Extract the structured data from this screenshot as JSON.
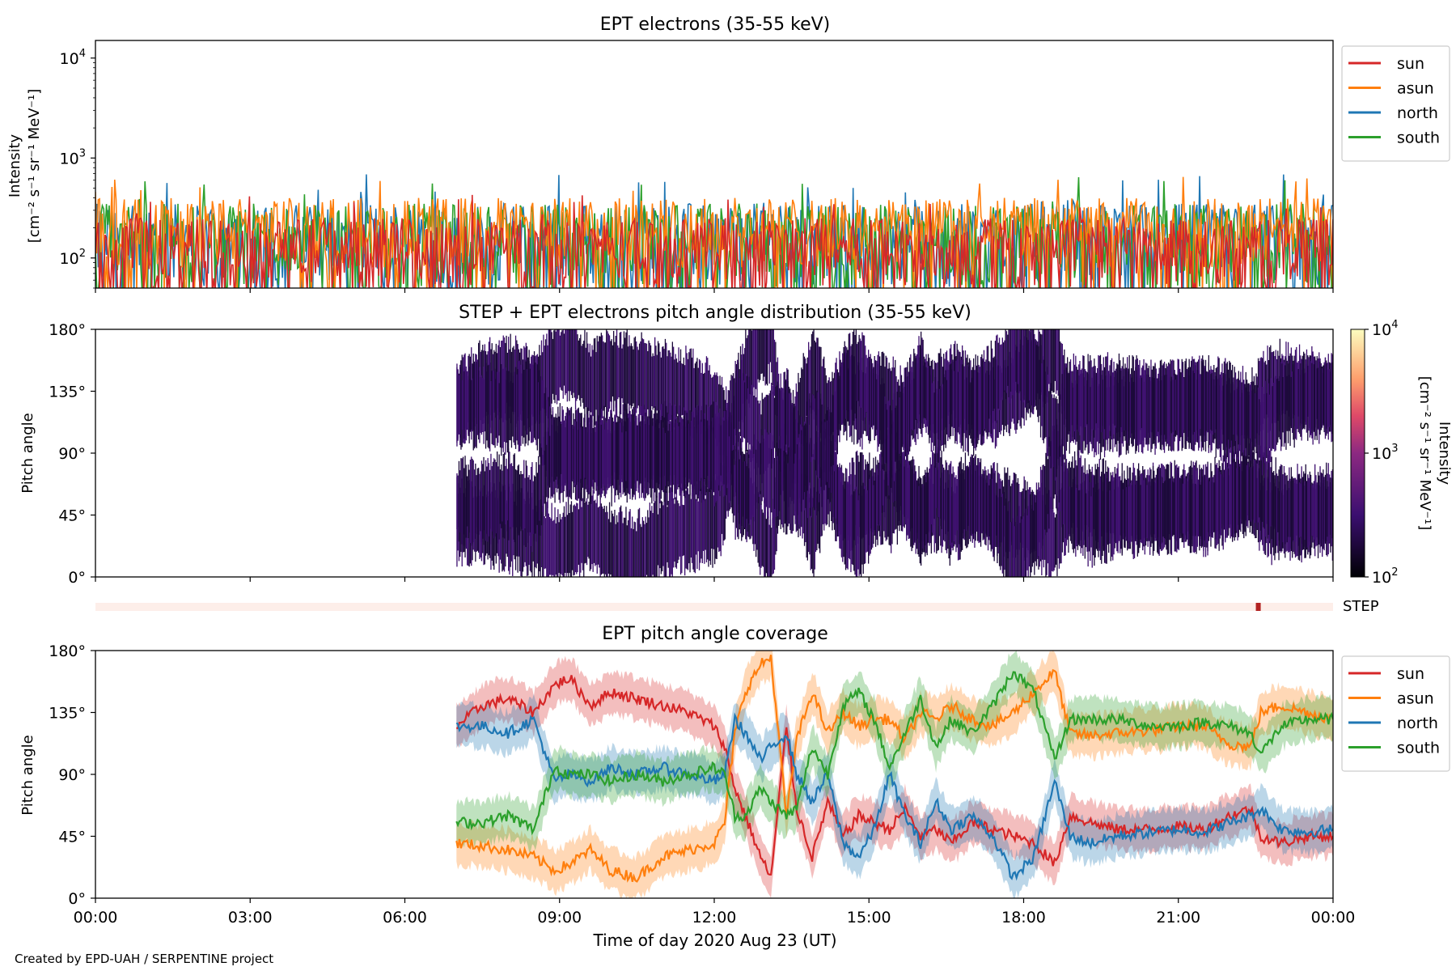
{
  "figure": {
    "credit": "Created by EPD-UAH / SERPENTINE project"
  },
  "colors": {
    "sun": "#d62728",
    "asun": "#ff7f0e",
    "north": "#1f77b4",
    "south": "#2ca02c",
    "pad_low": "#1a0838",
    "pad_mid": "#3d0f6e",
    "step_bar": "#fdeee9",
    "step_mark": "#b22222"
  },
  "x_axis": {
    "label": "Time of day 2020 Aug 23 (UT)",
    "ticks": [
      {
        "hour": 0,
        "label": "00:00"
      },
      {
        "hour": 3,
        "label": "03:00"
      },
      {
        "hour": 6,
        "label": "06:00"
      },
      {
        "hour": 9,
        "label": "09:00"
      },
      {
        "hour": 12,
        "label": "12:00"
      },
      {
        "hour": 15,
        "label": "15:00"
      },
      {
        "hour": 18,
        "label": "18:00"
      },
      {
        "hour": 21,
        "label": "21:00"
      },
      {
        "hour": 24,
        "label": "00:00"
      }
    ]
  },
  "chart_data": [
    {
      "type": "line",
      "title": "EPT electrons (35-55 keV)",
      "ylabel_line1": "Intensity",
      "ylabel_line2": "[cm⁻² s⁻¹ sr⁻¹ MeV⁻¹]",
      "yscale": "log",
      "ylim": [
        50,
        15000
      ],
      "xlim_hours": [
        0,
        24
      ],
      "y_ticks": [
        {
          "value": 100,
          "base": "10",
          "exp": "2"
        },
        {
          "value": 1000,
          "base": "10",
          "exp": "3"
        },
        {
          "value": 10000,
          "base": "10",
          "exp": "4"
        }
      ],
      "legend_position": "upper right outside",
      "series": [
        {
          "name": "sun",
          "color_key": "sun",
          "typical_range": [
            50,
            250
          ],
          "peak": 450
        },
        {
          "name": "asun",
          "color_key": "asun",
          "typical_range": [
            80,
            400
          ],
          "peak": 650
        },
        {
          "name": "north",
          "color_key": "north",
          "typical_range": [
            50,
            350
          ],
          "peak": 700
        },
        {
          "name": "south",
          "color_key": "south",
          "typical_range": [
            50,
            350
          ],
          "peak": 750
        }
      ]
    },
    {
      "type": "heatmap",
      "title": "STEP + EPT electrons pitch angle distribution (35-55 keV)",
      "ylabel": "Pitch angle",
      "ylim": [
        0,
        180
      ],
      "y_ticks": [
        {
          "value": 0,
          "label": "0°"
        },
        {
          "value": 45,
          "label": "45°"
        },
        {
          "value": 90,
          "label": "90°"
        },
        {
          "value": 135,
          "label": "135°"
        },
        {
          "value": 180,
          "label": "180°"
        }
      ],
      "data_start_hour": 7.0,
      "colorbar": {
        "label_line1": "Intensity",
        "label_line2": "[cm⁻² s⁻¹ sr⁻¹ MeV⁻¹]",
        "scale": "log",
        "range": [
          100,
          10000
        ],
        "ticks": [
          {
            "value": 100,
            "base": "10",
            "exp": "2"
          },
          {
            "value": 1000,
            "base": "10",
            "exp": "3"
          },
          {
            "value": 10000,
            "base": "10",
            "exp": "4"
          }
        ]
      }
    },
    {
      "type": "bar",
      "title": "",
      "label": "STEP",
      "mark_hour": 22.55
    },
    {
      "type": "area",
      "title": "EPT pitch angle coverage",
      "ylabel": "Pitch angle",
      "ylim": [
        0,
        180
      ],
      "y_ticks": [
        {
          "value": 0,
          "label": "0°"
        },
        {
          "value": 45,
          "label": "45°"
        },
        {
          "value": 90,
          "label": "90°"
        },
        {
          "value": 135,
          "label": "135°"
        },
        {
          "value": 180,
          "label": "180°"
        }
      ],
      "legend_position": "upper right outside",
      "series": [
        {
          "name": "sun",
          "color_key": "sun",
          "points": [
            [
              7.0,
              125
            ],
            [
              7.5,
              140
            ],
            [
              8.0,
              145
            ],
            [
              8.5,
              135
            ],
            [
              8.9,
              155
            ],
            [
              9.2,
              160
            ],
            [
              9.6,
              140
            ],
            [
              10.0,
              150
            ],
            [
              10.5,
              145
            ],
            [
              11.0,
              140
            ],
            [
              11.5,
              135
            ],
            [
              12.0,
              125
            ],
            [
              12.2,
              110
            ],
            [
              12.4,
              80
            ],
            [
              12.6,
              60
            ],
            [
              12.9,
              30
            ],
            [
              13.1,
              15
            ],
            [
              13.4,
              125
            ],
            [
              13.6,
              65
            ],
            [
              13.9,
              30
            ],
            [
              14.2,
              70
            ],
            [
              14.5,
              45
            ],
            [
              14.8,
              60
            ],
            [
              15.1,
              55
            ],
            [
              15.4,
              50
            ],
            [
              15.7,
              65
            ],
            [
              16.0,
              45
            ],
            [
              16.3,
              50
            ],
            [
              16.6,
              40
            ],
            [
              17.0,
              55
            ],
            [
              17.4,
              50
            ],
            [
              17.8,
              45
            ],
            [
              18.2,
              40
            ],
            [
              18.6,
              25
            ],
            [
              18.9,
              60
            ],
            [
              19.3,
              55
            ],
            [
              19.8,
              50
            ],
            [
              20.5,
              50
            ],
            [
              21.0,
              52
            ],
            [
              21.5,
              50
            ],
            [
              22.0,
              60
            ],
            [
              22.4,
              65
            ],
            [
              22.6,
              45
            ],
            [
              23.0,
              40
            ],
            [
              23.5,
              45
            ],
            [
              24.0,
              45
            ]
          ]
        },
        {
          "name": "asun",
          "color_key": "asun",
          "points": [
            [
              7.0,
              40
            ],
            [
              7.5,
              38
            ],
            [
              8.0,
              35
            ],
            [
              8.5,
              30
            ],
            [
              8.9,
              20
            ],
            [
              9.2,
              25
            ],
            [
              9.6,
              35
            ],
            [
              10.0,
              20
            ],
            [
              10.5,
              15
            ],
            [
              11.0,
              30
            ],
            [
              11.5,
              35
            ],
            [
              12.0,
              40
            ],
            [
              12.2,
              55
            ],
            [
              12.4,
              120
            ],
            [
              12.6,
              150
            ],
            [
              12.9,
              170
            ],
            [
              13.1,
              175
            ],
            [
              13.4,
              60
            ],
            [
              13.6,
              115
            ],
            [
              13.9,
              150
            ],
            [
              14.2,
              120
            ],
            [
              14.5,
              135
            ],
            [
              14.8,
              125
            ],
            [
              15.1,
              130
            ],
            [
              15.4,
              130
            ],
            [
              15.7,
              115
            ],
            [
              16.0,
              135
            ],
            [
              16.3,
              130
            ],
            [
              16.6,
              140
            ],
            [
              17.0,
              130
            ],
            [
              17.4,
              125
            ],
            [
              17.8,
              135
            ],
            [
              18.2,
              150
            ],
            [
              18.6,
              165
            ],
            [
              18.9,
              120
            ],
            [
              19.3,
              118
            ],
            [
              19.8,
              120
            ],
            [
              20.5,
              122
            ],
            [
              21.0,
              125
            ],
            [
              21.5,
              125
            ],
            [
              22.0,
              112
            ],
            [
              22.4,
              110
            ],
            [
              22.6,
              135
            ],
            [
              23.0,
              140
            ],
            [
              23.5,
              135
            ],
            [
              24.0,
              130
            ]
          ]
        },
        {
          "name": "north",
          "color_key": "north",
          "points": [
            [
              7.0,
              125
            ],
            [
              7.5,
              125
            ],
            [
              8.0,
              120
            ],
            [
              8.5,
              130
            ],
            [
              8.9,
              85
            ],
            [
              9.2,
              90
            ],
            [
              9.6,
              85
            ],
            [
              10.0,
              95
            ],
            [
              10.5,
              90
            ],
            [
              11.0,
              95
            ],
            [
              11.5,
              90
            ],
            [
              12.0,
              85
            ],
            [
              12.2,
              90
            ],
            [
              12.4,
              130
            ],
            [
              12.6,
              120
            ],
            [
              12.9,
              100
            ],
            [
              13.1,
              110
            ],
            [
              13.4,
              120
            ],
            [
              13.6,
              90
            ],
            [
              13.9,
              70
            ],
            [
              14.2,
              90
            ],
            [
              14.5,
              40
            ],
            [
              14.8,
              30
            ],
            [
              15.1,
              50
            ],
            [
              15.4,
              90
            ],
            [
              15.7,
              60
            ],
            [
              16.0,
              40
            ],
            [
              16.3,
              70
            ],
            [
              16.6,
              50
            ],
            [
              17.0,
              60
            ],
            [
              17.4,
              45
            ],
            [
              17.8,
              15
            ],
            [
              18.2,
              30
            ],
            [
              18.6,
              85
            ],
            [
              18.9,
              45
            ],
            [
              19.3,
              40
            ],
            [
              19.8,
              45
            ],
            [
              20.5,
              48
            ],
            [
              21.0,
              50
            ],
            [
              21.5,
              48
            ],
            [
              22.0,
              55
            ],
            [
              22.4,
              60
            ],
            [
              22.6,
              65
            ],
            [
              23.0,
              50
            ],
            [
              23.5,
              48
            ],
            [
              24.0,
              50
            ]
          ]
        },
        {
          "name": "south",
          "color_key": "south",
          "points": [
            [
              7.0,
              55
            ],
            [
              7.5,
              55
            ],
            [
              8.0,
              60
            ],
            [
              8.5,
              50
            ],
            [
              8.9,
              95
            ],
            [
              9.2,
              90
            ],
            [
              9.6,
              90
            ],
            [
              10.0,
              85
            ],
            [
              10.5,
              90
            ],
            [
              11.0,
              85
            ],
            [
              11.5,
              90
            ],
            [
              12.0,
              95
            ],
            [
              12.2,
              90
            ],
            [
              12.4,
              60
            ],
            [
              12.6,
              60
            ],
            [
              12.9,
              80
            ],
            [
              13.1,
              70
            ],
            [
              13.4,
              60
            ],
            [
              13.6,
              65
            ],
            [
              13.9,
              110
            ],
            [
              14.2,
              90
            ],
            [
              14.5,
              140
            ],
            [
              14.8,
              150
            ],
            [
              15.1,
              130
            ],
            [
              15.4,
              95
            ],
            [
              15.7,
              120
            ],
            [
              16.0,
              145
            ],
            [
              16.3,
              110
            ],
            [
              16.6,
              130
            ],
            [
              17.0,
              120
            ],
            [
              17.4,
              140
            ],
            [
              17.8,
              165
            ],
            [
              18.2,
              150
            ],
            [
              18.6,
              100
            ],
            [
              18.9,
              130
            ],
            [
              19.3,
              130
            ],
            [
              19.8,
              130
            ],
            [
              20.5,
              125
            ],
            [
              21.0,
              125
            ],
            [
              21.5,
              128
            ],
            [
              22.0,
              125
            ],
            [
              22.4,
              120
            ],
            [
              22.6,
              105
            ],
            [
              23.0,
              125
            ],
            [
              23.5,
              130
            ],
            [
              24.0,
              130
            ]
          ]
        }
      ]
    }
  ]
}
